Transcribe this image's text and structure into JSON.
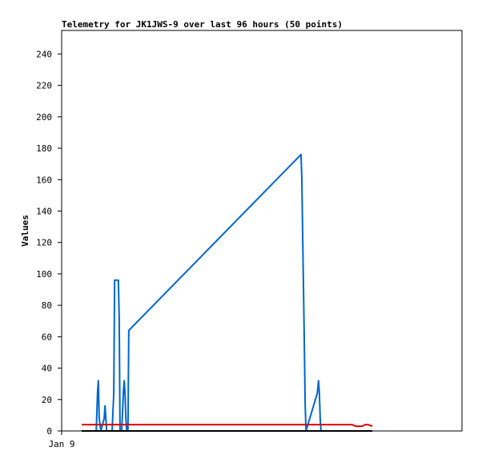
{
  "chart_data": {
    "type": "line",
    "title": "Telemetry for JK1JWS-9 over last 96 hours (50 points)",
    "y_label": "Values",
    "xlim": [
      0,
      96
    ],
    "xticks": [
      {
        "value": 0,
        "label": "Jan 9"
      }
    ],
    "ylim": [
      0,
      255
    ],
    "yticks": [
      0,
      20,
      40,
      60,
      80,
      100,
      120,
      140,
      160,
      180,
      200,
      220,
      240
    ],
    "grid": false,
    "series": [
      {
        "color": "#0066cc",
        "x": [
          8.3,
          8.6,
          8.8,
          9.0,
          9.4,
          10.2,
          10.4,
          10.6,
          10.8,
          12.1,
          12.5,
          12.7,
          13.6,
          13.8,
          14.0,
          14.4,
          14.8,
          15.0,
          15.2,
          15.4,
          15.6,
          15.9,
          16.1,
          57.4,
          57.6,
          57.8,
          58.0,
          58.2,
          58.4,
          58.6,
          61.3,
          61.6,
          61.8,
          62.0,
          62.2
        ],
        "values": [
          0,
          24,
          32,
          8,
          0,
          8,
          16,
          8,
          0,
          0,
          24,
          96,
          96,
          72,
          0,
          0,
          24,
          32,
          24,
          8,
          0,
          0,
          64,
          176,
          160,
          124,
          90,
          54,
          16,
          0,
          24,
          32,
          24,
          8,
          0
        ]
      },
      {
        "color": "#dd0000",
        "x": [
          4.8,
          69.7,
          70.5,
          72.0,
          72.8,
          73.5,
          74.5
        ],
        "values": [
          4,
          4,
          3,
          3,
          4,
          4,
          3
        ]
      },
      {
        "color": "#000000",
        "x": [
          4.8,
          74.5
        ],
        "values": [
          0,
          0
        ]
      }
    ]
  }
}
